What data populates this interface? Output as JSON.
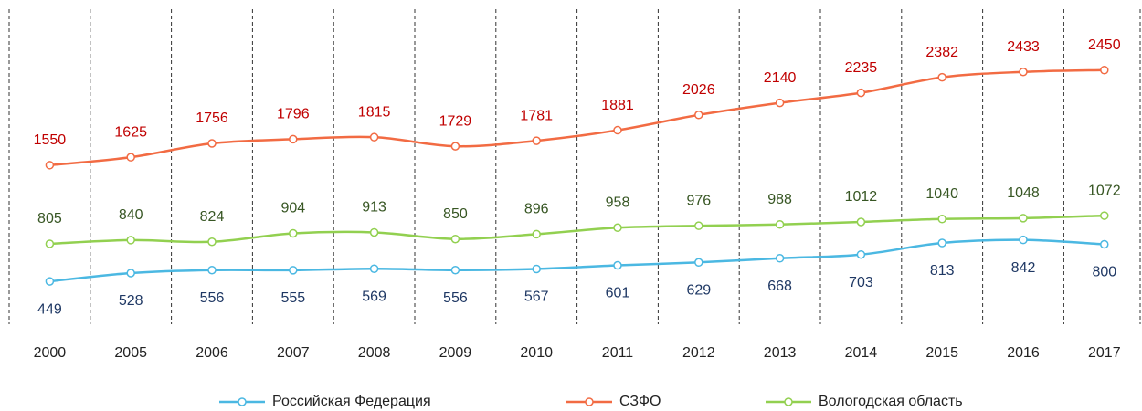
{
  "chart_data": {
    "type": "line",
    "categories": [
      "2000",
      "2005",
      "2006",
      "2007",
      "2008",
      "2009",
      "2010",
      "2011",
      "2012",
      "2013",
      "2014",
      "2015",
      "2016",
      "2017"
    ],
    "series": [
      {
        "name": "Российская Федерация",
        "color": "#4bb8e2",
        "label_color": "#1f3864",
        "label_position": "below",
        "values": [
          449,
          528,
          556,
          555,
          569,
          556,
          567,
          601,
          629,
          668,
          703,
          813,
          842,
          800
        ]
      },
      {
        "name": "СЗФО",
        "color": "#f26b43",
        "label_color": "#c00000",
        "label_position": "above",
        "values": [
          1550,
          1625,
          1756,
          1796,
          1815,
          1729,
          1781,
          1881,
          2026,
          2140,
          2235,
          2382,
          2433,
          2450
        ]
      },
      {
        "name": "Вологодская область",
        "color": "#92d050",
        "label_color": "#375623",
        "label_position": "above",
        "values": [
          805,
          840,
          824,
          904,
          913,
          850,
          896,
          958,
          976,
          988,
          1012,
          1040,
          1048,
          1072
        ]
      }
    ],
    "smooth": true,
    "markers": true,
    "vertical_separators": true,
    "legend": "bottom"
  }
}
